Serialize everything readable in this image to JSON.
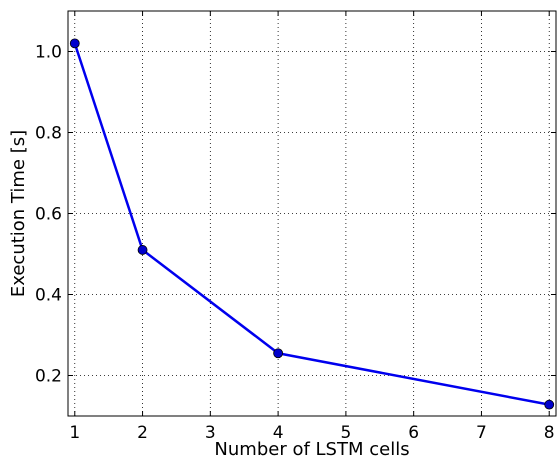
{
  "chart_data": {
    "type": "line",
    "title": "",
    "xlabel": "Number of LSTM cells",
    "ylabel": "Execution Time [s]",
    "xlim": [
      0.9,
      8.1
    ],
    "ylim": [
      0.1,
      1.1
    ],
    "xticks": [
      1,
      2,
      3,
      4,
      5,
      6,
      7,
      8
    ],
    "xtick_labels": [
      "1",
      "2",
      "3",
      "4",
      "5",
      "6",
      "7",
      "8"
    ],
    "yticks": [
      0.2,
      0.4,
      0.6,
      0.8,
      1.0
    ],
    "ytick_labels": [
      "0.2",
      "0.4",
      "0.6",
      "0.8",
      "1.0"
    ],
    "grid": true,
    "grid_style": "dotted",
    "line_color": "#0000ee",
    "marker_color": "#0000cc",
    "marker": "circle",
    "x": [
      1,
      2,
      4,
      8
    ],
    "series": [
      {
        "values": [
          1.02,
          0.51,
          0.255,
          0.128
        ]
      }
    ]
  }
}
